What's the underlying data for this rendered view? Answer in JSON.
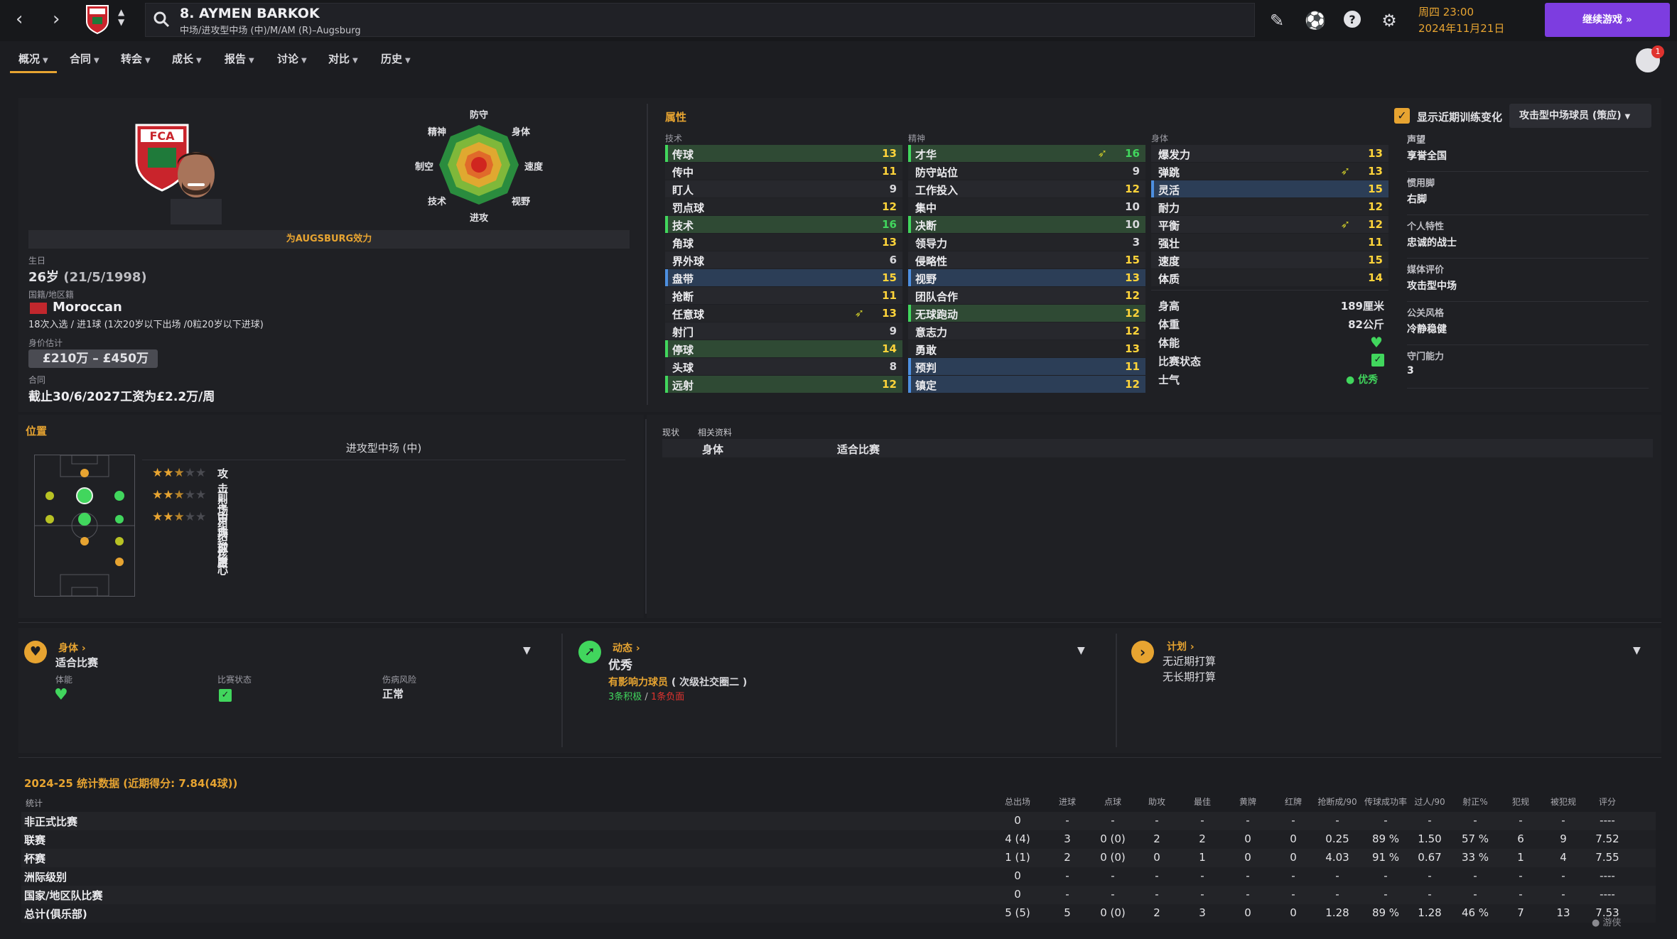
{
  "header": {
    "title": "8. AYMEN BARKOK",
    "subtitle": "中场/进攻型中场 (中)/M/AM (R)–Augsburg",
    "date_line1": "周四 23:00",
    "date_line2": "2024年11月21日",
    "continue_label": "继续游戏",
    "notification_count": "1"
  },
  "tabs": [
    {
      "label": "概况"
    },
    {
      "label": "合同"
    },
    {
      "label": "转会"
    },
    {
      "label": "成长"
    },
    {
      "label": "报告"
    },
    {
      "label": "讨论"
    },
    {
      "label": "对比"
    },
    {
      "label": "历史"
    }
  ],
  "profile": {
    "club_banner": "为AUGSBURG效力",
    "radar_labels": {
      "top": "防守",
      "tr": "身体",
      "right": "速度",
      "br": "视野",
      "bottom": "进攻",
      "bl": "技术",
      "left": "制空",
      "tl": "精神"
    },
    "birth_label": "生日",
    "age": "26岁",
    "dob": "(21/5/1998)",
    "nation_label": "国籍/地区籍",
    "nation": "Moroccan",
    "caps": "18次入选 / 进1球 (1次20岁以下出场 /0粒20岁以下进球)",
    "value_label": "身价估计",
    "value": "£210万 – £450万",
    "contract_label": "合同",
    "contract": "截止30/6/2027工资为£2.2万/周"
  },
  "attributes": {
    "title": "属性",
    "show_training_label": "显示近期训练变化",
    "role_select": "攻击型中场球员 (策应)",
    "technical_header": "技术",
    "mental_header": "精神",
    "physical_header": "身体",
    "technical": [
      {
        "name": "传球",
        "value": "13"
      },
      {
        "name": "传中",
        "value": "11"
      },
      {
        "name": "盯人",
        "value": "9"
      },
      {
        "name": "罚点球",
        "value": "12"
      },
      {
        "name": "技术",
        "value": "16"
      },
      {
        "name": "角球",
        "value": "13"
      },
      {
        "name": "界外球",
        "value": "6"
      },
      {
        "name": "盘带",
        "value": "15"
      },
      {
        "name": "抢断",
        "value": "11"
      },
      {
        "name": "任意球",
        "value": "13"
      },
      {
        "name": "射门",
        "value": "9"
      },
      {
        "name": "停球",
        "value": "14"
      },
      {
        "name": "头球",
        "value": "8"
      },
      {
        "name": "远射",
        "value": "12"
      }
    ],
    "mental": [
      {
        "name": "才华",
        "value": "16"
      },
      {
        "name": "防守站位",
        "value": "9"
      },
      {
        "name": "工作投入",
        "value": "12"
      },
      {
        "name": "集中",
        "value": "10"
      },
      {
        "name": "决断",
        "value": "10"
      },
      {
        "name": "领导力",
        "value": "3"
      },
      {
        "name": "侵略性",
        "value": "15"
      },
      {
        "name": "视野",
        "value": "13"
      },
      {
        "name": "团队合作",
        "value": "12"
      },
      {
        "name": "无球跑动",
        "value": "12"
      },
      {
        "name": "意志力",
        "value": "12"
      },
      {
        "name": "勇敢",
        "value": "13"
      },
      {
        "name": "预判",
        "value": "11"
      },
      {
        "name": "镇定",
        "value": "12"
      }
    ],
    "physical": [
      {
        "name": "爆发力",
        "value": "13"
      },
      {
        "name": "弹跳",
        "value": "13"
      },
      {
        "name": "灵活",
        "value": "15"
      },
      {
        "name": "耐力",
        "value": "12"
      },
      {
        "name": "平衡",
        "value": "12"
      },
      {
        "name": "强壮",
        "value": "11"
      },
      {
        "name": "速度",
        "value": "15"
      },
      {
        "name": "体质",
        "value": "14"
      }
    ],
    "height_label": "身高",
    "height": "189厘米",
    "weight_label": "体重",
    "weight": "82公斤",
    "fitness_label": "体能",
    "match_label": "比赛状态",
    "morale_label": "士气",
    "morale": "优秀"
  },
  "info": [
    {
      "label": "声望",
      "value": "享誉全国"
    },
    {
      "label": "惯用脚",
      "value": "右脚"
    },
    {
      "label": "个人特性",
      "value": "忠诚的战士"
    },
    {
      "label": "媒体评价",
      "value": "攻击型中场"
    },
    {
      "label": "公关风格",
      "value": "冷静稳健"
    },
    {
      "label": "守门能力",
      "value": "3"
    }
  ],
  "positions": {
    "title": "位置",
    "main": "进攻型中场 (中)",
    "roles": [
      {
        "name": "攻击型中场球员",
        "stars": 2.5
      },
      {
        "name": "前场组织核心",
        "stars": 2.5
      },
      {
        "name": "古典前腰",
        "stars": 2.5
      }
    ]
  },
  "status_tabs": {
    "tab1": "现状",
    "tab2": "相关资料",
    "col1": "身体",
    "col2": "适合比赛"
  },
  "cards": {
    "physical": {
      "title": "身体",
      "status": "适合比赛",
      "fitness_label": "体能",
      "match_label": "比赛状态",
      "injury_label": "伤病风险",
      "injury": "正常"
    },
    "dynamics": {
      "title": "动态",
      "status": "优秀",
      "influence": "有影响力球员",
      "influence_sub": "( 次级社交圈二 )",
      "positive": "3条积极",
      "sep": " / ",
      "negative": "1条负面"
    },
    "plans": {
      "title": "计划",
      "short": "无近期打算",
      "long": "无长期打算"
    }
  },
  "stats": {
    "title": "2024-25 统计数据 (近期得分: 7.84(4球))",
    "row_header": "统计",
    "headers": [
      "总出场",
      "进球",
      "点球",
      "助攻",
      "最佳",
      "黄牌",
      "红牌",
      "抢断成/90",
      "传球成功率",
      "过人/90",
      "射正%",
      "犯规",
      "被犯规",
      "评分"
    ],
    "rows": [
      {
        "name": "非正式比赛",
        "cells": [
          "0",
          "-",
          "-",
          "-",
          "-",
          "-",
          "-",
          "-",
          "-",
          "-",
          "-",
          "-",
          "-",
          "----"
        ]
      },
      {
        "name": "联赛",
        "cells": [
          "4 (4)",
          "3",
          "0 (0)",
          "2",
          "2",
          "0",
          "0",
          "0.25",
          "89 %",
          "1.50",
          "57 %",
          "6",
          "9",
          "7.52"
        ]
      },
      {
        "name": "杯赛",
        "cells": [
          "1 (1)",
          "2",
          "0 (0)",
          "0",
          "1",
          "0",
          "0",
          "4.03",
          "91 %",
          "0.67",
          "33 %",
          "1",
          "4",
          "7.55"
        ]
      },
      {
        "name": "洲际级别",
        "cells": [
          "0",
          "-",
          "-",
          "-",
          "-",
          "-",
          "-",
          "-",
          "-",
          "-",
          "-",
          "-",
          "-",
          "----"
        ]
      },
      {
        "name": "国家/地区队比赛",
        "cells": [
          "0",
          "-",
          "-",
          "-",
          "-",
          "-",
          "-",
          "-",
          "-",
          "-",
          "-",
          "-",
          "-",
          "----"
        ]
      },
      {
        "name": "总计(俱乐部)",
        "cells": [
          "5 (5)",
          "5",
          "0 (0)",
          "2",
          "3",
          "0",
          "0",
          "1.28",
          "89 %",
          "1.28",
          "46 %",
          "7",
          "13",
          "7.53"
        ]
      }
    ]
  },
  "colors": {
    "accent": "#e7a431",
    "button": "#7d3de0",
    "green": "#41d65d"
  }
}
